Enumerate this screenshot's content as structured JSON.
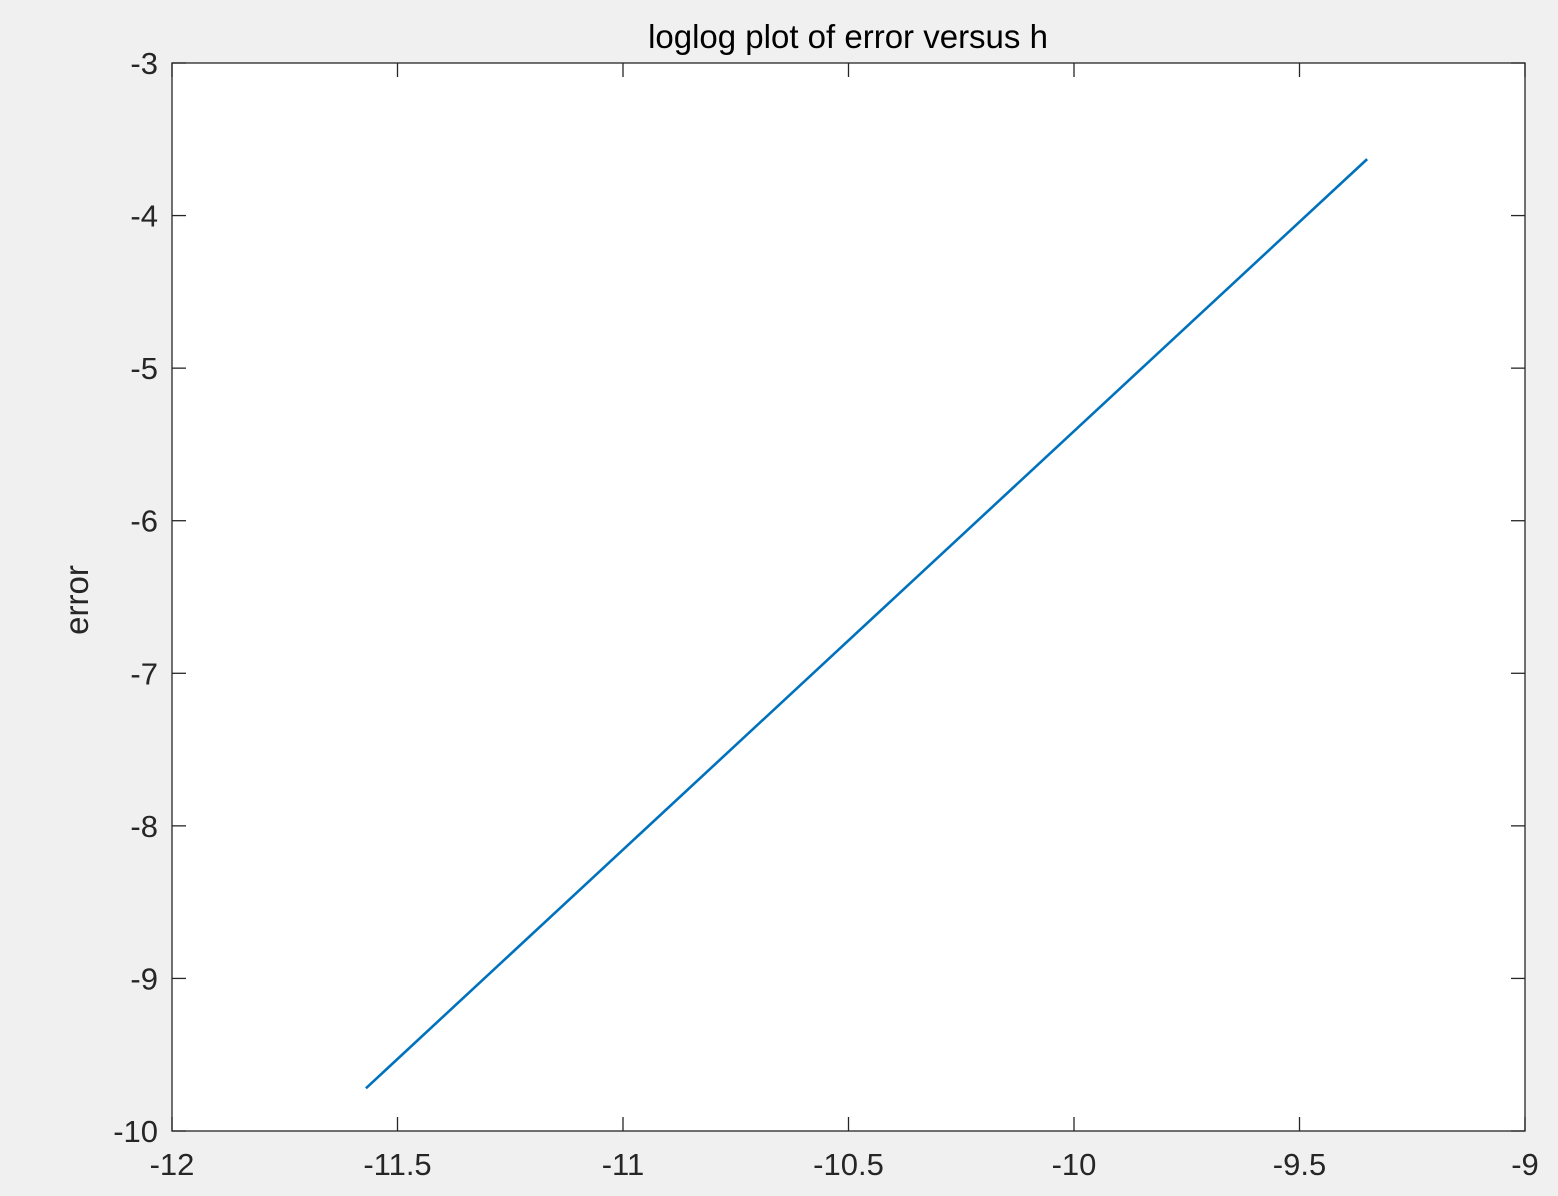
{
  "chart_data": {
    "type": "line",
    "title": "loglog plot of error versus h",
    "xlabel": "",
    "ylabel": "error",
    "xlim": [
      -12,
      -9
    ],
    "ylim": [
      -10,
      -3
    ],
    "xticks": [
      -12,
      -11.5,
      -11,
      -10.5,
      -10,
      -9.5,
      -9
    ],
    "yticks": [
      -10,
      -9,
      -8,
      -7,
      -6,
      -5,
      -4,
      -3
    ],
    "xtick_labels": [
      "-12",
      "-11.5",
      "-11",
      "-10.5",
      "-10",
      "-9.5",
      "-9"
    ],
    "ytick_labels": [
      "-10",
      "-9",
      "-8",
      "-7",
      "-6",
      "-5",
      "-4",
      "-3"
    ],
    "grid": false,
    "legend": "none",
    "series": [
      {
        "color": "#0072bd",
        "x": [
          -11.57,
          -9.35
        ],
        "y": [
          -9.72,
          -3.63
        ]
      }
    ]
  }
}
